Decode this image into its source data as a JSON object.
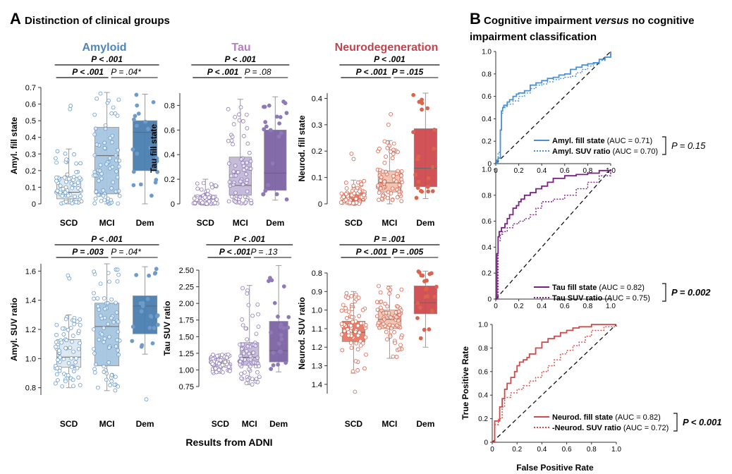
{
  "panelA": {
    "letter": "A",
    "title": "Distinction of clinical groups",
    "footer": "Results from ADNI",
    "categories": [
      "SCD",
      "MCI",
      "Dem"
    ],
    "columns": [
      {
        "name": "Amyloid",
        "color": "#4e86b8"
      },
      {
        "name": "Tau",
        "color": "#b37fc0"
      },
      {
        "name": "Neurodegeneration",
        "color": "#c0444e"
      }
    ]
  },
  "panelB": {
    "letter": "B",
    "title_line1_pre": "Cognitive impairment ",
    "title_line1_em": "versus",
    "title_line1_post": " no cognitive",
    "title_line2": "impairment classification",
    "xlabel": "False Positive Rate",
    "ylabel": "True Positive Rate"
  },
  "chart_data": [
    {
      "type": "box",
      "group": "Amyloid",
      "ylabel": "Amyl. fill state",
      "ylim": [
        0,
        0.7
      ],
      "yticks": [
        "0",
        "0.1",
        "0.2",
        "0.3",
        "0.4",
        "0.5",
        "0.6",
        "0.7"
      ],
      "pvals": {
        "overall": "P < .001",
        "left": "P < .001",
        "right": "P = .04*"
      },
      "colors": [
        "#dde7f1",
        "#a6c6e0",
        "#4a7fb1"
      ],
      "dot": "#6d9ccc",
      "boxes": [
        {
          "category": "SCD",
          "q1": 0.03,
          "median": 0.07,
          "q3": 0.16,
          "wlo": 0,
          "whi": 0.33
        },
        {
          "category": "MCI",
          "q1": 0.06,
          "median": 0.29,
          "q3": 0.46,
          "wlo": 0,
          "whi": 0.67
        },
        {
          "category": "Dem",
          "q1": 0.2,
          "median": 0.43,
          "q3": 0.5,
          "wlo": 0,
          "whi": 0.66
        }
      ],
      "outliers": [
        [
          0,
          0.57
        ],
        [
          0,
          0.59
        ]
      ]
    },
    {
      "type": "box",
      "group": "Tau",
      "ylabel": "Tau fill state",
      "ylim": [
        0,
        0.9
      ],
      "yticks": [
        "0",
        "0.2",
        "0.4",
        "0.6",
        "0.8"
      ],
      "pvals": {
        "overall": "P < .001",
        "left": "P < .001",
        "right": "P = .08"
      },
      "colors": [
        "#ebe7f1",
        "#c4b9d8",
        "#7d64a6"
      ],
      "dot": "#8f7ab8",
      "boxes": [
        {
          "category": "SCD",
          "q1": 0.01,
          "median": 0.04,
          "q3": 0.07,
          "wlo": 0,
          "whi": 0.2
        },
        {
          "category": "MCI",
          "q1": 0.07,
          "median": 0.15,
          "q3": 0.38,
          "wlo": 0,
          "whi": 0.85
        },
        {
          "category": "Dem",
          "q1": 0.11,
          "median": 0.25,
          "q3": 0.6,
          "wlo": 0.03,
          "whi": 0.87
        }
      ],
      "outliers": []
    },
    {
      "type": "box",
      "group": "Neurodegeneration",
      "ylabel": "Neurod. fill state",
      "ylim": [
        0,
        0.42
      ],
      "yticks": [
        "0",
        "0.1",
        "0.2",
        "0.3",
        "0.4"
      ],
      "pvals": {
        "overall": "P < .001",
        "left": "P < .001",
        "right": "P = .015"
      },
      "colors": [
        "#e87a66",
        "#f3c2ad",
        "#cf4a50"
      ],
      "dot": "#d9654f",
      "boxes": [
        {
          "category": "SCD",
          "q1": 0.01,
          "median": 0.015,
          "q3": 0.04,
          "wlo": 0,
          "whi": 0.09
        },
        {
          "category": "MCI",
          "q1": 0.045,
          "median": 0.08,
          "q3": 0.125,
          "wlo": 0,
          "whi": 0.24
        },
        {
          "category": "Dem",
          "q1": 0.065,
          "median": 0.135,
          "q3": 0.285,
          "wlo": 0.02,
          "whi": 0.42
        }
      ],
      "outliers": [
        [
          0,
          0.19
        ],
        [
          0,
          0.17
        ],
        [
          1,
          0.34
        ],
        [
          1,
          0.3
        ]
      ]
    },
    {
      "type": "box",
      "group": "Amyloid",
      "ylabel": "Amyl. SUV ratio",
      "ylim": [
        0.75,
        1.65
      ],
      "yticks": [
        "0.8",
        "1.0",
        "1.2",
        "1.4",
        "1.6"
      ],
      "pvals": {
        "overall": "P < .001",
        "left": "P = .003",
        "right": "P = .04*"
      },
      "colors": [
        "#dde7f1",
        "#a6c6e0",
        "#4a7fb1"
      ],
      "dot": "#6d9ccc",
      "boxes": [
        {
          "category": "SCD",
          "q1": 0.94,
          "median": 1.01,
          "q3": 1.13,
          "wlo": 0.8,
          "whi": 1.3
        },
        {
          "category": "MCI",
          "q1": 0.95,
          "median": 1.22,
          "q3": 1.38,
          "wlo": 0.78,
          "whi": 1.65
        },
        {
          "category": "Dem",
          "q1": 1.17,
          "median": 1.36,
          "q3": 1.43,
          "wlo": 1.03,
          "whi": 1.63
        }
      ],
      "outliers": [
        [
          0,
          1.55
        ],
        [
          0,
          1.57
        ],
        [
          2,
          0.72
        ]
      ]
    },
    {
      "type": "box",
      "group": "Tau",
      "ylabel": "Tau SUV ratio",
      "ylim": [
        0.75,
        2.5
      ],
      "yticks": [
        "0.75",
        "1.00",
        "1.25",
        "1.50",
        "1.75",
        "2.00",
        "2.25",
        "2.50"
      ],
      "pvals": {
        "overall": "P < .001",
        "left": "P < .001",
        "right": "P = .13"
      },
      "colors": [
        "#ebe7f1",
        "#c4b9d8",
        "#7d64a6"
      ],
      "dot": "#8f7ab8",
      "boxes": [
        {
          "category": "SCD",
          "q1": 1.06,
          "median": 1.1,
          "q3": 1.14,
          "wlo": 0.95,
          "whi": 1.24
        },
        {
          "category": "MCI",
          "q1": 1.07,
          "median": 1.19,
          "q3": 1.41,
          "wlo": 0.78,
          "whi": 2.27
        },
        {
          "category": "Dem",
          "q1": 1.12,
          "median": 1.29,
          "q3": 1.73,
          "wlo": 0.97,
          "whi": 2.57
        }
      ],
      "outliers": []
    },
    {
      "type": "box",
      "group": "Neurodegeneration",
      "ylabel": "Neurod. SUV ratio",
      "ylim": [
        0.8,
        1.45
      ],
      "yreversed": true,
      "yticks": [
        "0.8",
        "0.9",
        "1.0",
        "1.1",
        "1.2",
        "1.3",
        "1.4"
      ],
      "pvals": {
        "overall": "P = .001",
        "left": "P < .001",
        "right": "P = .005"
      },
      "colors": [
        "#e87a66",
        "#f3c2ad",
        "#cf4a50"
      ],
      "dot": "#d9654f",
      "boxes": [
        {
          "category": "SCD",
          "q1": 1.06,
          "median": 1.12,
          "q3": 1.17,
          "wlo": 0.9,
          "whi": 1.34
        },
        {
          "category": "MCI",
          "q1": 1.0,
          "median": 1.05,
          "q3": 1.1,
          "wlo": 0.87,
          "whi": 1.26
        },
        {
          "category": "Dem",
          "q1": 0.87,
          "median": 0.96,
          "q3": 1.02,
          "wlo": 0.79,
          "whi": 1.2
        }
      ],
      "outliers": [
        [
          0,
          1.44
        ]
      ]
    },
    {
      "type": "line",
      "subtype": "roc",
      "xlim": [
        0,
        1
      ],
      "ylim": [
        0,
        1
      ],
      "xticks": [
        "0",
        "0.2",
        "0.4",
        "0.6",
        "0.8",
        "1.0"
      ],
      "yticks": [
        "0",
        "0.2",
        "0.4",
        "0.6",
        "0.8",
        "1.0"
      ],
      "comparison": "P = 0.15",
      "comparison_bold": false,
      "series": [
        {
          "name": "Amyl. fill state",
          "auc": "(AUC = 0.71)",
          "color": "#4a90d9",
          "dash": false,
          "x": [
            0,
            0.01,
            0.02,
            0.03,
            0.04,
            0.05,
            0.06,
            0.07,
            0.1,
            0.12,
            0.15,
            0.18,
            0.2,
            0.25,
            0.3,
            0.35,
            0.4,
            0.45,
            0.5,
            0.55,
            0.6,
            0.65,
            0.7,
            0.75,
            0.8,
            0.85,
            0.9,
            0.95,
            1.0
          ],
          "y": [
            0,
            0.03,
            0.05,
            0.05,
            0.3,
            0.47,
            0.5,
            0.52,
            0.55,
            0.57,
            0.6,
            0.62,
            0.63,
            0.65,
            0.7,
            0.72,
            0.74,
            0.76,
            0.77,
            0.79,
            0.8,
            0.84,
            0.86,
            0.88,
            0.89,
            0.9,
            0.93,
            0.95,
            1.0
          ]
        },
        {
          "name": "Amyl. SUV ratio",
          "auc": "(AUC = 0.70)",
          "color": "#4a90d9",
          "dash": true,
          "x": [
            0,
            0.02,
            0.04,
            0.05,
            0.06,
            0.08,
            0.1,
            0.15,
            0.2,
            0.25,
            0.3,
            0.35,
            0.4,
            0.45,
            0.5,
            0.55,
            0.6,
            0.65,
            0.7,
            0.75,
            0.8,
            0.85,
            0.9,
            0.95,
            1.0
          ],
          "y": [
            0,
            0.1,
            0.3,
            0.45,
            0.5,
            0.51,
            0.53,
            0.56,
            0.6,
            0.63,
            0.67,
            0.7,
            0.71,
            0.73,
            0.75,
            0.76,
            0.77,
            0.78,
            0.81,
            0.84,
            0.87,
            0.89,
            0.92,
            0.95,
            1.0
          ]
        }
      ]
    },
    {
      "type": "line",
      "subtype": "roc",
      "xlim": [
        0,
        1
      ],
      "ylim": [
        0,
        1
      ],
      "xticks": [
        "0",
        "0.2",
        "0.4",
        "0.6",
        "0.8",
        "1.0"
      ],
      "yticks": [
        "0",
        "0.2",
        "0.4",
        "0.6",
        "0.8",
        "1.0"
      ],
      "comparison": "P = 0.002",
      "comparison_bold": true,
      "series": [
        {
          "name": "Tau fill state",
          "auc": "(AUC = 0.82)",
          "color": "#7b1f86",
          "dash": false,
          "x": [
            0,
            0.01,
            0.02,
            0.03,
            0.05,
            0.08,
            0.1,
            0.12,
            0.15,
            0.18,
            0.2,
            0.22,
            0.25,
            0.3,
            0.35,
            0.4,
            0.45,
            0.5,
            0.55,
            0.6,
            0.7,
            0.8,
            0.9,
            1.0
          ],
          "y": [
            0,
            0.35,
            0.48,
            0.52,
            0.55,
            0.58,
            0.62,
            0.65,
            0.7,
            0.72,
            0.75,
            0.77,
            0.8,
            0.82,
            0.85,
            0.87,
            0.9,
            0.93,
            0.93,
            0.95,
            0.96,
            0.97,
            0.99,
            1.0
          ]
        },
        {
          "name": "Tau SUV ratio",
          "auc": "(AUC = 0.75)",
          "color": "#7b1f86",
          "dash": true,
          "x": [
            0,
            0.02,
            0.04,
            0.06,
            0.1,
            0.15,
            0.2,
            0.25,
            0.3,
            0.35,
            0.4,
            0.5,
            0.6,
            0.7,
            0.8,
            0.9,
            1.0
          ],
          "y": [
            0,
            0.45,
            0.5,
            0.52,
            0.55,
            0.58,
            0.6,
            0.62,
            0.65,
            0.7,
            0.75,
            0.77,
            0.8,
            0.85,
            0.9,
            0.95,
            1.0
          ]
        }
      ]
    },
    {
      "type": "line",
      "subtype": "roc",
      "xlim": [
        0,
        1
      ],
      "ylim": [
        0,
        1
      ],
      "xticks": [
        "0",
        "0.2",
        "0.4",
        "0.6",
        "0.8",
        "1.0"
      ],
      "yticks": [
        "0",
        "0.2",
        "0.4",
        "0.6",
        "0.8",
        "1.0"
      ],
      "comparison": "P < 0.001",
      "comparison_bold": true,
      "series": [
        {
          "name": "Neurod. fill state",
          "auc": "(AUC = 0.82)",
          "color": "#d04a4a",
          "dash": false,
          "x": [
            0,
            0.02,
            0.04,
            0.06,
            0.08,
            0.1,
            0.12,
            0.15,
            0.18,
            0.2,
            0.22,
            0.25,
            0.28,
            0.3,
            0.35,
            0.4,
            0.45,
            0.5,
            0.55,
            0.6,
            0.65,
            0.7,
            0.8,
            0.9,
            1.0
          ],
          "y": [
            0,
            0.18,
            0.18,
            0.3,
            0.37,
            0.45,
            0.5,
            0.55,
            0.6,
            0.65,
            0.68,
            0.7,
            0.72,
            0.75,
            0.8,
            0.85,
            0.88,
            0.9,
            0.93,
            0.95,
            0.97,
            0.98,
            1.0,
            1.0,
            1.0
          ]
        },
        {
          "name": "-Neurod. SUV ratio",
          "auc": "(AUC = 0.72)",
          "color": "#d04a4a",
          "dash": true,
          "x": [
            0,
            0.02,
            0.05,
            0.08,
            0.1,
            0.15,
            0.2,
            0.25,
            0.3,
            0.35,
            0.4,
            0.45,
            0.5,
            0.55,
            0.6,
            0.65,
            0.7,
            0.75,
            0.8,
            0.9,
            1.0
          ],
          "y": [
            0,
            0.15,
            0.2,
            0.3,
            0.38,
            0.42,
            0.45,
            0.48,
            0.52,
            0.55,
            0.6,
            0.65,
            0.7,
            0.75,
            0.78,
            0.82,
            0.85,
            0.9,
            0.95,
            0.98,
            1.0
          ]
        }
      ]
    }
  ]
}
